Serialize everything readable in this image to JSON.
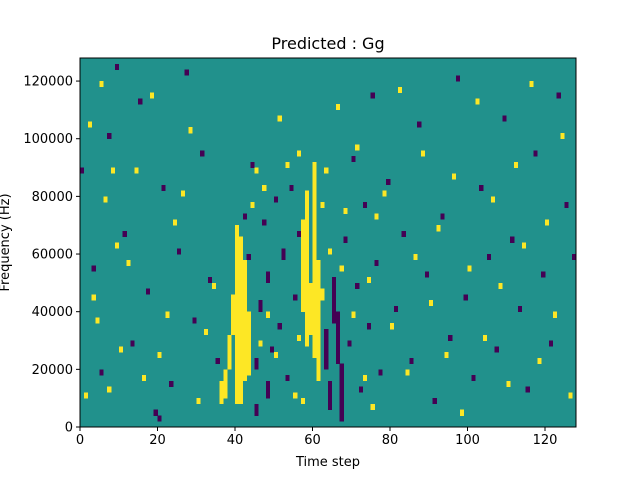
{
  "chart_data": {
    "type": "heatmap",
    "title": "Predicted : Gg",
    "xlabel": "Time step",
    "ylabel": "Frequency (Hz)",
    "xlim": [
      0,
      128
    ],
    "ylim": [
      0,
      128000
    ],
    "xticks": [
      0,
      20,
      40,
      60,
      80,
      100,
      120
    ],
    "yticks": [
      0,
      20000,
      40000,
      60000,
      80000,
      100000,
      120000
    ],
    "grid": false,
    "legend": "none",
    "n_time_steps": 128,
    "n_freq_bins": 64,
    "background_value": 0,
    "colormap": {
      "-1": "#440154",
      "0": "#21918c",
      "1": "#fde725"
    },
    "cells_positive": [
      [
        1,
        5
      ],
      [
        2,
        52
      ],
      [
        3,
        22
      ],
      [
        4,
        18
      ],
      [
        5,
        59
      ],
      [
        6,
        39
      ],
      [
        7,
        6
      ],
      [
        8,
        44
      ],
      [
        9,
        31
      ],
      [
        10,
        13
      ],
      [
        12,
        28
      ],
      [
        14,
        44
      ],
      [
        16,
        8
      ],
      [
        18,
        57
      ],
      [
        20,
        12
      ],
      [
        22,
        19
      ],
      [
        24,
        35
      ],
      [
        26,
        40
      ],
      [
        28,
        51
      ],
      [
        30,
        4
      ],
      [
        32,
        16
      ],
      [
        34,
        24
      ],
      [
        36,
        4
      ],
      [
        36,
        5
      ],
      [
        36,
        6
      ],
      [
        36,
        7
      ],
      [
        37,
        5
      ],
      [
        37,
        6
      ],
      [
        37,
        7
      ],
      [
        37,
        8
      ],
      [
        37,
        9
      ],
      [
        38,
        10
      ],
      [
        38,
        11
      ],
      [
        38,
        12
      ],
      [
        38,
        13
      ],
      [
        38,
        14
      ],
      [
        38,
        15
      ],
      [
        39,
        16
      ],
      [
        39,
        17
      ],
      [
        39,
        18
      ],
      [
        39,
        19
      ],
      [
        39,
        20
      ],
      [
        39,
        21
      ],
      [
        39,
        22
      ],
      [
        40,
        4
      ],
      [
        40,
        5
      ],
      [
        40,
        6
      ],
      [
        40,
        7
      ],
      [
        40,
        8
      ],
      [
        40,
        9
      ],
      [
        40,
        10
      ],
      [
        40,
        11
      ],
      [
        40,
        12
      ],
      [
        40,
        13
      ],
      [
        40,
        14
      ],
      [
        40,
        15
      ],
      [
        40,
        16
      ],
      [
        40,
        17
      ],
      [
        40,
        18
      ],
      [
        40,
        19
      ],
      [
        40,
        20
      ],
      [
        40,
        21
      ],
      [
        40,
        22
      ],
      [
        40,
        23
      ],
      [
        40,
        24
      ],
      [
        40,
        25
      ],
      [
        40,
        26
      ],
      [
        40,
        27
      ],
      [
        40,
        28
      ],
      [
        40,
        29
      ],
      [
        40,
        30
      ],
      [
        40,
        31
      ],
      [
        40,
        32
      ],
      [
        40,
        33
      ],
      [
        40,
        34
      ],
      [
        41,
        4
      ],
      [
        41,
        5
      ],
      [
        41,
        6
      ],
      [
        41,
        7
      ],
      [
        41,
        8
      ],
      [
        41,
        9
      ],
      [
        41,
        10
      ],
      [
        41,
        11
      ],
      [
        41,
        12
      ],
      [
        41,
        13
      ],
      [
        41,
        14
      ],
      [
        41,
        15
      ],
      [
        41,
        16
      ],
      [
        41,
        17
      ],
      [
        41,
        18
      ],
      [
        41,
        19
      ],
      [
        41,
        20
      ],
      [
        41,
        21
      ],
      [
        41,
        22
      ],
      [
        41,
        23
      ],
      [
        41,
        24
      ],
      [
        41,
        25
      ],
      [
        41,
        26
      ],
      [
        41,
        27
      ],
      [
        41,
        28
      ],
      [
        41,
        29
      ],
      [
        41,
        30
      ],
      [
        41,
        31
      ],
      [
        41,
        32
      ],
      [
        42,
        8
      ],
      [
        42,
        9
      ],
      [
        42,
        10
      ],
      [
        42,
        11
      ],
      [
        42,
        12
      ],
      [
        42,
        13
      ],
      [
        42,
        14
      ],
      [
        42,
        15
      ],
      [
        42,
        16
      ],
      [
        42,
        17
      ],
      [
        42,
        18
      ],
      [
        42,
        19
      ],
      [
        42,
        20
      ],
      [
        42,
        21
      ],
      [
        42,
        22
      ],
      [
        42,
        23
      ],
      [
        42,
        24
      ],
      [
        42,
        25
      ],
      [
        42,
        26
      ],
      [
        42,
        27
      ],
      [
        42,
        28
      ],
      [
        43,
        9
      ],
      [
        43,
        10
      ],
      [
        43,
        11
      ],
      [
        43,
        12
      ],
      [
        43,
        13
      ],
      [
        43,
        14
      ],
      [
        43,
        15
      ],
      [
        43,
        16
      ],
      [
        43,
        17
      ],
      [
        43,
        18
      ],
      [
        43,
        19
      ],
      [
        44,
        38
      ],
      [
        45,
        44
      ],
      [
        46,
        14
      ],
      [
        47,
        41
      ],
      [
        48,
        19
      ],
      [
        50,
        12
      ],
      [
        51,
        53
      ],
      [
        53,
        45
      ],
      [
        55,
        5
      ],
      [
        56,
        15
      ],
      [
        56,
        47
      ],
      [
        57,
        4
      ],
      [
        57,
        20
      ],
      [
        57,
        21
      ],
      [
        57,
        22
      ],
      [
        57,
        23
      ],
      [
        57,
        24
      ],
      [
        57,
        25
      ],
      [
        57,
        26
      ],
      [
        57,
        27
      ],
      [
        57,
        28
      ],
      [
        57,
        29
      ],
      [
        57,
        30
      ],
      [
        57,
        31
      ],
      [
        57,
        32
      ],
      [
        57,
        33
      ],
      [
        57,
        34
      ],
      [
        57,
        35
      ],
      [
        58,
        14
      ],
      [
        58,
        15
      ],
      [
        58,
        16
      ],
      [
        58,
        17
      ],
      [
        58,
        18
      ],
      [
        58,
        19
      ],
      [
        58,
        20
      ],
      [
        58,
        21
      ],
      [
        58,
        22
      ],
      [
        58,
        23
      ],
      [
        58,
        24
      ],
      [
        58,
        25
      ],
      [
        58,
        26
      ],
      [
        58,
        27
      ],
      [
        58,
        28
      ],
      [
        58,
        29
      ],
      [
        58,
        30
      ],
      [
        58,
        31
      ],
      [
        58,
        32
      ],
      [
        58,
        33
      ],
      [
        58,
        34
      ],
      [
        58,
        35
      ],
      [
        58,
        36
      ],
      [
        58,
        37
      ],
      [
        58,
        38
      ],
      [
        58,
        39
      ],
      [
        58,
        40
      ],
      [
        59,
        16
      ],
      [
        59,
        17
      ],
      [
        59,
        18
      ],
      [
        59,
        19
      ],
      [
        59,
        20
      ],
      [
        59,
        21
      ],
      [
        59,
        22
      ],
      [
        59,
        23
      ],
      [
        59,
        24
      ],
      [
        60,
        12
      ],
      [
        60,
        13
      ],
      [
        60,
        14
      ],
      [
        60,
        15
      ],
      [
        60,
        16
      ],
      [
        60,
        17
      ],
      [
        60,
        18
      ],
      [
        60,
        19
      ],
      [
        60,
        20
      ],
      [
        60,
        21
      ],
      [
        60,
        22
      ],
      [
        60,
        23
      ],
      [
        60,
        24
      ],
      [
        60,
        25
      ],
      [
        60,
        26
      ],
      [
        60,
        27
      ],
      [
        60,
        28
      ],
      [
        60,
        29
      ],
      [
        60,
        30
      ],
      [
        60,
        31
      ],
      [
        60,
        32
      ],
      [
        60,
        33
      ],
      [
        60,
        34
      ],
      [
        60,
        35
      ],
      [
        60,
        36
      ],
      [
        60,
        37
      ],
      [
        60,
        38
      ],
      [
        60,
        39
      ],
      [
        60,
        40
      ],
      [
        60,
        41
      ],
      [
        60,
        42
      ],
      [
        60,
        43
      ],
      [
        60,
        44
      ],
      [
        60,
        45
      ],
      [
        61,
        8
      ],
      [
        61,
        9
      ],
      [
        61,
        10
      ],
      [
        61,
        11
      ],
      [
        61,
        12
      ],
      [
        61,
        13
      ],
      [
        61,
        14
      ],
      [
        61,
        15
      ],
      [
        61,
        16
      ],
      [
        61,
        17
      ],
      [
        61,
        18
      ],
      [
        61,
        19
      ],
      [
        61,
        20
      ],
      [
        61,
        21
      ],
      [
        61,
        22
      ],
      [
        61,
        23
      ],
      [
        61,
        24
      ],
      [
        61,
        25
      ],
      [
        61,
        26
      ],
      [
        61,
        27
      ],
      [
        61,
        28
      ],
      [
        62,
        22
      ],
      [
        62,
        23
      ],
      [
        62,
        38
      ],
      [
        63,
        44
      ],
      [
        64,
        30
      ],
      [
        66,
        55
      ],
      [
        67,
        27
      ],
      [
        68,
        37
      ],
      [
        70,
        19
      ],
      [
        71,
        48
      ],
      [
        73,
        8
      ],
      [
        74,
        25
      ],
      [
        75,
        3
      ],
      [
        76,
        36
      ],
      [
        78,
        40
      ],
      [
        80,
        17
      ],
      [
        82,
        58
      ],
      [
        84,
        9
      ],
      [
        86,
        29
      ],
      [
        88,
        47
      ],
      [
        90,
        21
      ],
      [
        92,
        34
      ],
      [
        94,
        12
      ],
      [
        96,
        43
      ],
      [
        98,
        2
      ],
      [
        100,
        27
      ],
      [
        102,
        56
      ],
      [
        104,
        15
      ],
      [
        106,
        39
      ],
      [
        108,
        24
      ],
      [
        110,
        7
      ],
      [
        112,
        45
      ],
      [
        114,
        31
      ],
      [
        116,
        59
      ],
      [
        118,
        11
      ],
      [
        120,
        35
      ],
      [
        122,
        19
      ],
      [
        124,
        50
      ],
      [
        126,
        5
      ]
    ],
    "cells_negative": [
      [
        0,
        44
      ],
      [
        3,
        27
      ],
      [
        5,
        9
      ],
      [
        7,
        50
      ],
      [
        9,
        62
      ],
      [
        11,
        33
      ],
      [
        13,
        14
      ],
      [
        15,
        56
      ],
      [
        17,
        23
      ],
      [
        19,
        2
      ],
      [
        20,
        1
      ],
      [
        21,
        41
      ],
      [
        23,
        7
      ],
      [
        25,
        30
      ],
      [
        27,
        61
      ],
      [
        29,
        18
      ],
      [
        31,
        47
      ],
      [
        33,
        25
      ],
      [
        35,
        11
      ],
      [
        42,
        36
      ],
      [
        43,
        29
      ],
      [
        44,
        45
      ],
      [
        45,
        2
      ],
      [
        45,
        3
      ],
      [
        45,
        10
      ],
      [
        45,
        11
      ],
      [
        46,
        20
      ],
      [
        46,
        21
      ],
      [
        47,
        35
      ],
      [
        48,
        5
      ],
      [
        48,
        6
      ],
      [
        48,
        7
      ],
      [
        48,
        25
      ],
      [
        48,
        26
      ],
      [
        49,
        13
      ],
      [
        50,
        39
      ],
      [
        51,
        17
      ],
      [
        52,
        29
      ],
      [
        52,
        30
      ],
      [
        53,
        8
      ],
      [
        54,
        41
      ],
      [
        55,
        22
      ],
      [
        56,
        33
      ],
      [
        63,
        10
      ],
      [
        63,
        11
      ],
      [
        63,
        12
      ],
      [
        63,
        13
      ],
      [
        63,
        14
      ],
      [
        63,
        15
      ],
      [
        63,
        16
      ],
      [
        64,
        3
      ],
      [
        64,
        4
      ],
      [
        64,
        5
      ],
      [
        64,
        6
      ],
      [
        64,
        7
      ],
      [
        65,
        18
      ],
      [
        65,
        19
      ],
      [
        65,
        20
      ],
      [
        65,
        21
      ],
      [
        65,
        22
      ],
      [
        65,
        23
      ],
      [
        65,
        24
      ],
      [
        65,
        25
      ],
      [
        66,
        11
      ],
      [
        66,
        12
      ],
      [
        66,
        13
      ],
      [
        66,
        14
      ],
      [
        66,
        15
      ],
      [
        66,
        16
      ],
      [
        66,
        17
      ],
      [
        66,
        18
      ],
      [
        66,
        19
      ],
      [
        67,
        1
      ],
      [
        67,
        2
      ],
      [
        67,
        3
      ],
      [
        67,
        4
      ],
      [
        67,
        5
      ],
      [
        67,
        6
      ],
      [
        67,
        7
      ],
      [
        67,
        8
      ],
      [
        67,
        9
      ],
      [
        67,
        10
      ],
      [
        68,
        32
      ],
      [
        69,
        14
      ],
      [
        70,
        46
      ],
      [
        71,
        24
      ],
      [
        72,
        6
      ],
      [
        73,
        38
      ],
      [
        74,
        17
      ],
      [
        75,
        57
      ],
      [
        76,
        28
      ],
      [
        77,
        9
      ],
      [
        79,
        42
      ],
      [
        81,
        20
      ],
      [
        83,
        33
      ],
      [
        85,
        11
      ],
      [
        87,
        52
      ],
      [
        89,
        26
      ],
      [
        91,
        4
      ],
      [
        93,
        36
      ],
      [
        95,
        15
      ],
      [
        97,
        60
      ],
      [
        99,
        22
      ],
      [
        101,
        8
      ],
      [
        103,
        41
      ],
      [
        105,
        29
      ],
      [
        107,
        13
      ],
      [
        109,
        53
      ],
      [
        111,
        32
      ],
      [
        113,
        20
      ],
      [
        115,
        6
      ],
      [
        117,
        47
      ],
      [
        119,
        26
      ],
      [
        121,
        14
      ],
      [
        123,
        57
      ],
      [
        125,
        38
      ],
      [
        127,
        29
      ]
    ]
  }
}
